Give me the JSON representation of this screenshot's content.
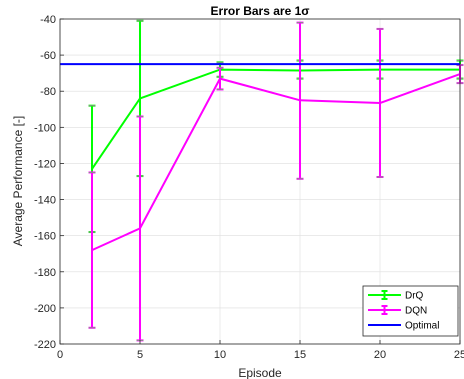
{
  "chart_data": {
    "type": "line",
    "title": "Error Bars are 1σ",
    "xlabel": "Episode",
    "ylabel": "Average Performance [-]",
    "xlim": [
      0,
      25
    ],
    "ylim": [
      -220,
      -40
    ],
    "xticks": [
      0,
      5,
      10,
      15,
      20,
      25
    ],
    "yticks": [
      -220,
      -200,
      -180,
      -160,
      -140,
      -120,
      -100,
      -80,
      -60,
      -40
    ],
    "grid": true,
    "legend_position": "bottom-right",
    "series": [
      {
        "name": "DrQ",
        "color": "#00ff00",
        "marker_color": "#8c8c8c",
        "error_bars": true,
        "x": [
          2,
          5,
          10,
          15,
          20,
          25
        ],
        "y": [
          -123,
          -84,
          -68,
          -68.5,
          -68,
          -68
        ],
        "lower": [
          -158,
          -127,
          -72,
          -73,
          -73,
          -73
        ],
        "upper": [
          -88,
          -41,
          -64,
          -63,
          -63,
          -63
        ]
      },
      {
        "name": "DQN",
        "color": "#ff00ff",
        "marker_color": "#8c8c8c",
        "error_bars": true,
        "x": [
          2,
          5,
          10,
          15,
          20,
          25
        ],
        "y": [
          -168,
          -156,
          -73,
          -85,
          -86.5,
          -70.5
        ],
        "lower": [
          -211,
          -218,
          -79,
          -128.5,
          -127.5,
          -75.5
        ],
        "upper": [
          -125,
          -94,
          -67,
          -42,
          -45.5,
          -65.5
        ]
      },
      {
        "name": "Optimal",
        "color": "#0000ff",
        "error_bars": false,
        "x": [
          0,
          25
        ],
        "y": [
          -65,
          -65
        ]
      }
    ]
  }
}
